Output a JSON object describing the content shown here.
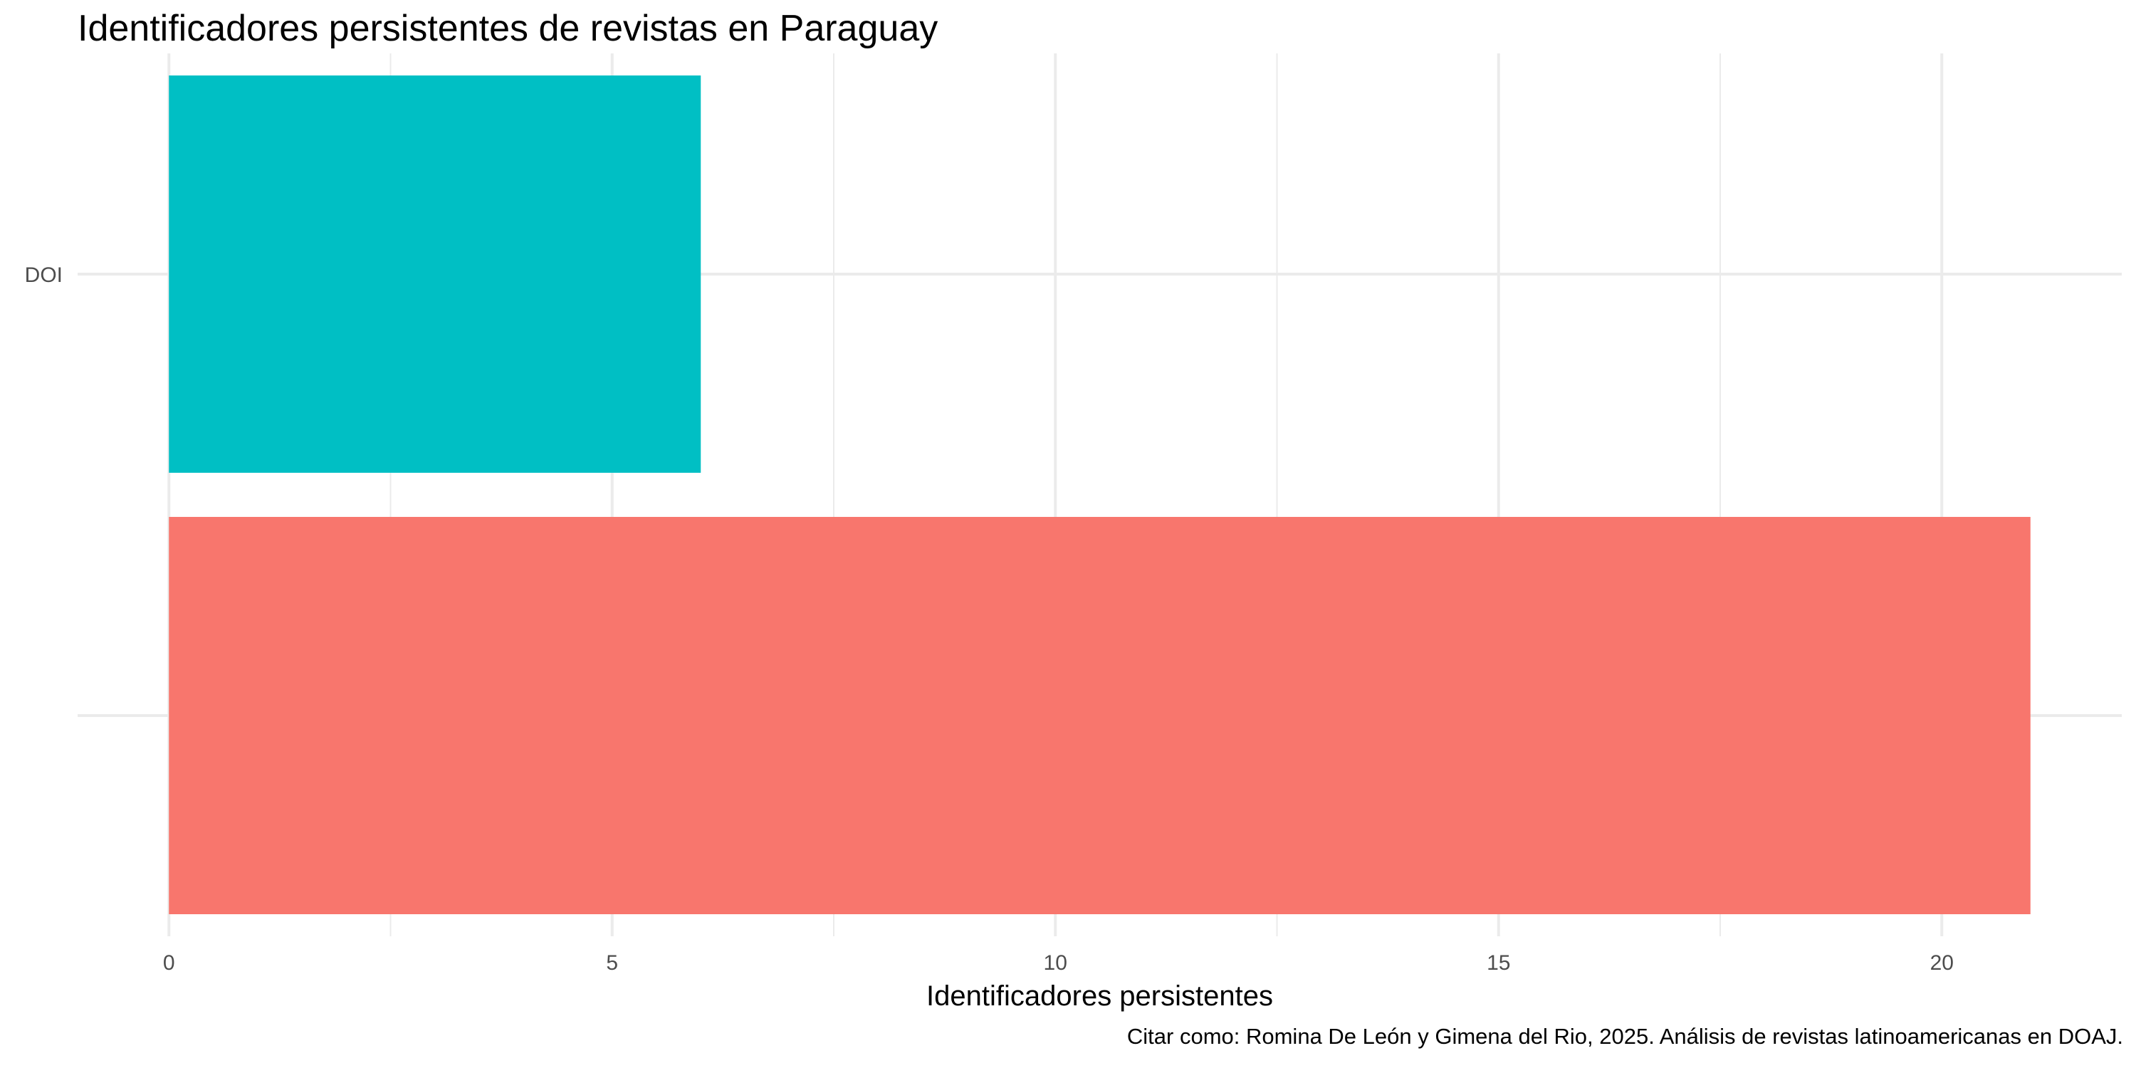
{
  "chart_data": {
    "type": "bar",
    "orientation": "horizontal",
    "title": "Identificadores persistentes de revistas en Paraguay",
    "subtitle": "",
    "caption": "Citar como: Romina De León y Gimena del Rio, 2025. Análisis de revistas latinoamericanas en DOAJ.",
    "xlabel": "Identificadores persistentes",
    "ylabel": "",
    "categories": [
      "DOI",
      ""
    ],
    "values": [
      6,
      21
    ],
    "colors": [
      "#00BFC4",
      "#F8766D"
    ],
    "xlim": [
      -1.03,
      22.03
    ],
    "x_ticks": [
      0,
      5,
      10,
      15,
      20
    ],
    "x_tick_labels": [
      "0",
      "5",
      "10",
      "15",
      "20"
    ],
    "x_minor_ticks": [
      2.5,
      7.5,
      12.5,
      17.5
    ],
    "grid": true,
    "legend": "none"
  }
}
